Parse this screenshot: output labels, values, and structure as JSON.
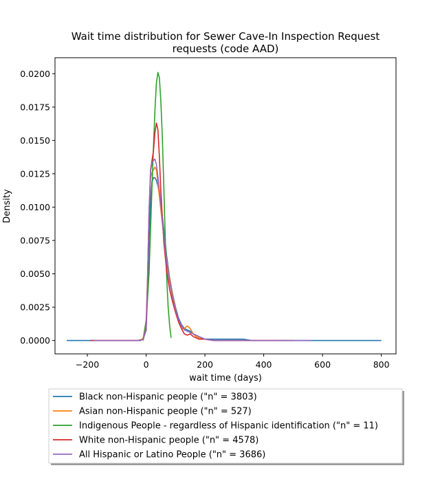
{
  "chart_data": {
    "type": "line",
    "title": "Wait time distribution  for Sewer Cave-In Inspection Request requests (code AAD)",
    "title_lines": [
      "Wait time distribution  for Sewer Cave-In Inspection Request",
      "requests (code AAD)"
    ],
    "xlabel": "wait time (days)",
    "ylabel": "Density",
    "xlim": [
      -310,
      850
    ],
    "ylim": [
      -0.001,
      0.0212
    ],
    "xticks": [
      -200,
      0,
      200,
      400,
      600,
      800
    ],
    "xtick_labels": [
      "−200",
      "0",
      "200",
      "400",
      "600",
      "800"
    ],
    "yticks": [
      0.0,
      0.0025,
      0.005,
      0.0075,
      0.01,
      0.0125,
      0.015,
      0.0175,
      0.02
    ],
    "ytick_labels": [
      "0.0000",
      "0.0025",
      "0.0050",
      "0.0075",
      "0.0100",
      "0.0125",
      "0.0150",
      "0.0175",
      "0.0200"
    ],
    "grid": false,
    "legend_position": "below plot",
    "series": [
      {
        "name": "Black non-Hispanic people (\"n\" = 3803)",
        "color": "#1f77b4",
        "x": [
          -270,
          -100,
          -30,
          -10,
          0,
          5,
          10,
          15,
          20,
          25,
          30,
          35,
          40,
          50,
          60,
          70,
          80,
          90,
          100,
          110,
          120,
          130,
          140,
          150,
          160,
          180,
          200,
          230,
          260,
          300,
          330,
          360,
          400,
          500,
          600,
          700,
          800
        ],
        "y": [
          0.0,
          0.0,
          0.0,
          0.0001,
          0.0008,
          0.0035,
          0.0075,
          0.0105,
          0.0119,
          0.0122,
          0.0122,
          0.012,
          0.0116,
          0.0104,
          0.0083,
          0.0063,
          0.0047,
          0.0035,
          0.0025,
          0.0017,
          0.0012,
          0.0009,
          0.0008,
          0.0007,
          0.0005,
          0.0003,
          0.0001,
          0.0001,
          0.0001,
          0.0001,
          0.0001,
          0.0,
          0.0,
          0.0,
          0.0,
          0.0,
          0.0
        ]
      },
      {
        "name": "Asian non-Hispanic people (\"n\" = 527)",
        "color": "#ff7f0e",
        "x": [
          -160,
          -50,
          -20,
          -10,
          0,
          5,
          10,
          15,
          20,
          25,
          30,
          35,
          40,
          50,
          60,
          70,
          80,
          90,
          100,
          110,
          120,
          130,
          140,
          150,
          160,
          170,
          180,
          200,
          230,
          260,
          300,
          350,
          400,
          450
        ],
        "y": [
          0.0,
          0.0,
          0.0,
          0.0002,
          0.0015,
          0.005,
          0.0095,
          0.0122,
          0.0126,
          0.0128,
          0.013,
          0.0128,
          0.0118,
          0.0098,
          0.0078,
          0.006,
          0.0046,
          0.0034,
          0.0024,
          0.0015,
          0.0009,
          0.0009,
          0.0011,
          0.0009,
          0.0005,
          0.0003,
          0.0002,
          0.0001,
          0.0,
          0.0,
          0.0,
          0.0,
          0.0,
          0.0
        ]
      },
      {
        "name": "Indigenous People - regardless of Hispanic identification (\"n\" = 11)",
        "color": "#2ca02c",
        "x": [
          -10,
          0,
          10,
          20,
          25,
          30,
          35,
          40,
          45,
          50,
          55,
          60,
          65,
          70,
          75,
          80,
          85
        ],
        "y": [
          0.0,
          0.0015,
          0.005,
          0.0115,
          0.0145,
          0.0173,
          0.0193,
          0.0201,
          0.0197,
          0.018,
          0.0153,
          0.0117,
          0.0078,
          0.0047,
          0.0025,
          0.0011,
          0.0002
        ]
      },
      {
        "name": "White non-Hispanic people (\"n\" = 4578)",
        "color": "#d62728",
        "x": [
          -190,
          -60,
          -20,
          -10,
          0,
          5,
          10,
          15,
          20,
          25,
          30,
          35,
          40,
          45,
          50,
          60,
          70,
          80,
          90,
          100,
          110,
          120,
          130,
          140,
          150,
          160,
          170,
          180,
          200,
          230,
          260,
          300,
          350,
          400,
          450,
          500
        ],
        "y": [
          0.0,
          0.0,
          0.0,
          0.0001,
          0.0009,
          0.0045,
          0.0095,
          0.0128,
          0.0135,
          0.0142,
          0.0156,
          0.0163,
          0.0158,
          0.0138,
          0.0113,
          0.0074,
          0.0052,
          0.0038,
          0.0029,
          0.0021,
          0.0014,
          0.0009,
          0.0005,
          0.0004,
          0.0005,
          0.0003,
          0.0002,
          0.0001,
          0.0001,
          0.0,
          0.0,
          0.0,
          0.0,
          0.0,
          0.0,
          0.0
        ]
      },
      {
        "name": "All Hispanic or Latino People (\"n\" = 3686)",
        "color": "#9467bd",
        "x": [
          -180,
          -60,
          -20,
          -10,
          0,
          5,
          10,
          15,
          20,
          25,
          30,
          35,
          40,
          50,
          60,
          70,
          80,
          90,
          100,
          110,
          120,
          130,
          140,
          150,
          160,
          170,
          180,
          200,
          230,
          260,
          300,
          350,
          400,
          500,
          560
        ],
        "y": [
          0.0,
          0.0,
          0.0,
          0.0001,
          0.001,
          0.0048,
          0.0098,
          0.0127,
          0.0133,
          0.0135,
          0.0136,
          0.0132,
          0.0123,
          0.0102,
          0.0078,
          0.0058,
          0.0044,
          0.0032,
          0.0023,
          0.0016,
          0.0011,
          0.0008,
          0.0007,
          0.0006,
          0.0005,
          0.0004,
          0.0003,
          0.0001,
          0.0,
          0.0,
          0.0,
          0.0,
          0.0,
          0.0,
          0.0
        ]
      }
    ]
  }
}
